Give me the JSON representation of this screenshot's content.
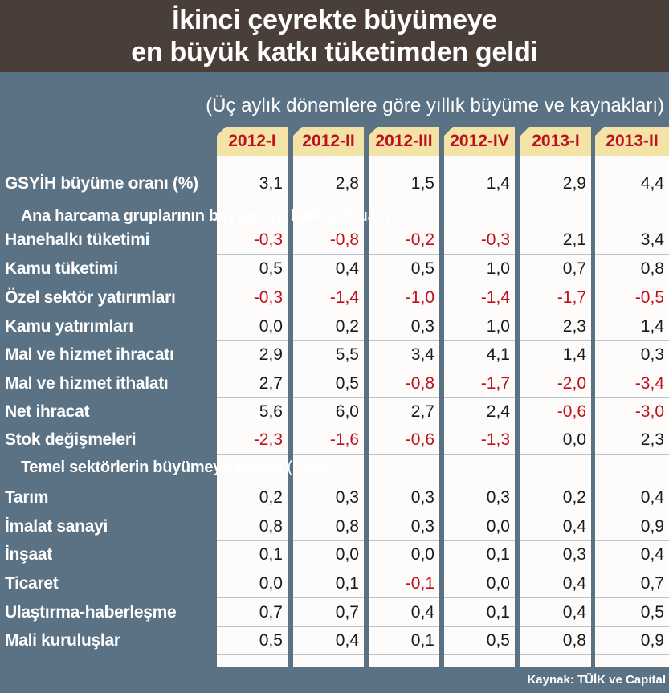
{
  "title_line1": "İkinci çeyrekte büyümeye",
  "title_line2": "en büyük katkı tüketimden geldi",
  "subtitle": "(Üç aylık dönemlere göre yıllık büyüme ve kaynakları)",
  "source": "Kaynak: TÜİK ve Capital",
  "colors": {
    "header_bg": "#4a3f38",
    "panel_bg": "#5a7284",
    "column_bg": "#fdfcfa",
    "column_head_bg": "#f4e3a6",
    "negative": "#c0101c",
    "positive": "#1a1a1a"
  },
  "chart_data": {
    "type": "table",
    "columns": [
      "2012-I",
      "2012-II",
      "2012-III",
      "2012-IV",
      "2013-I",
      "2013-II"
    ],
    "rows": [
      {
        "kind": "row",
        "label": "GSYİH büyüme oranı (%)",
        "values": [
          "3,1",
          "2,8",
          "1,5",
          "1,4",
          "2,9",
          "4,4"
        ]
      },
      {
        "kind": "section",
        "label": "Ana harcama gruplarının büyümeye katkısı",
        "unit": "(Puan)"
      },
      {
        "kind": "row",
        "label": "Hanehalkı tüketimi",
        "values": [
          "-0,3",
          "-0,8",
          "-0,2",
          "-0,3",
          "2,1",
          "3,4"
        ]
      },
      {
        "kind": "row",
        "label": "Kamu tüketimi",
        "values": [
          "0,5",
          "0,4",
          "0,5",
          "1,0",
          "0,7",
          "0,8"
        ]
      },
      {
        "kind": "row",
        "label": "Özel sektör yatırımları",
        "values": [
          "-0,3",
          "-1,4",
          "-1,0",
          "-1,4",
          "-1,7",
          "-0,5"
        ]
      },
      {
        "kind": "row",
        "label": "Kamu yatırımları",
        "values": [
          "0,0",
          "0,2",
          "0,3",
          "1,0",
          "2,3",
          "1,4"
        ]
      },
      {
        "kind": "row",
        "label": "Mal ve hizmet ihracatı",
        "values": [
          "2,9",
          "5,5",
          "3,4",
          "4,1",
          "1,4",
          "0,3"
        ]
      },
      {
        "kind": "row",
        "label": "Mal ve hizmet ithalatı",
        "values": [
          "2,7",
          "0,5",
          "-0,8",
          "-1,7",
          "-2,0",
          "-3,4"
        ]
      },
      {
        "kind": "row",
        "label": "Net ihracat",
        "values": [
          "5,6",
          "6,0",
          "2,7",
          "2,4",
          "-0,6",
          "-3,0"
        ]
      },
      {
        "kind": "row",
        "label": "Stok değişmeleri",
        "values": [
          "-2,3",
          "-1,6",
          "-0,6",
          "-1,3",
          "0,0",
          "2,3"
        ]
      },
      {
        "kind": "section",
        "label": "Temel sektörlerin büyümeye katkısı",
        "unit": "(Puan)"
      },
      {
        "kind": "row",
        "label": "Tarım",
        "values": [
          "0,2",
          "0,3",
          "0,3",
          "0,3",
          "0,2",
          "0,4"
        ]
      },
      {
        "kind": "row",
        "label": "İmalat sanayi",
        "values": [
          "0,8",
          "0,8",
          "0,3",
          "0,0",
          "0,4",
          "0,9"
        ]
      },
      {
        "kind": "row",
        "label": "İnşaat",
        "values": [
          "0,1",
          "0,0",
          "0,0",
          "0,1",
          "0,3",
          "0,4"
        ]
      },
      {
        "kind": "row",
        "label": "Ticaret",
        "values": [
          "0,0",
          "0,1",
          "-0,1",
          "0,0",
          "0,4",
          "0,7"
        ]
      },
      {
        "kind": "row",
        "label": "Ulaştırma-haberleşme",
        "values": [
          "0,7",
          "0,7",
          "0,4",
          "0,1",
          "0,4",
          "0,5"
        ]
      },
      {
        "kind": "row",
        "label": "Mali kuruluşlar",
        "values": [
          "0,5",
          "0,4",
          "0,1",
          "0,5",
          "0,8",
          "0,9"
        ]
      }
    ]
  }
}
